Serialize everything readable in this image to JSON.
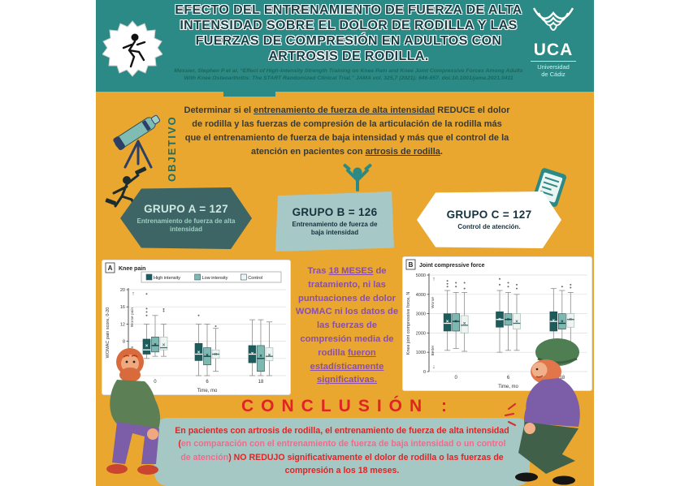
{
  "palette": {
    "header_teal": "#2b8a85",
    "body_yellow": "#e9a72f",
    "title_ink": "#173f45",
    "note_purple": "#8a4fa8",
    "conclusion_red": "#e02424",
    "conclusion_pink": "#ef6a8c",
    "conclusion_box_blue": "#a5c8c5",
    "group_a_bg": "#3e6565",
    "group_b_bg": "#a6c8c6",
    "group_c_bg": "#ffffff"
  },
  "header": {
    "title": "EFECTO DEL ENTRENAMIENTO DE FUERZA DE ALTA INTENSIDAD SOBRE EL DOLOR DE RODILLA Y LAS FUERZAS DE COMPRESIÓN EN ADULTOS CON ARTROSIS DE RODILLA.",
    "citation": "Messier, Stephen P et al. “Effect of High-Intensity Strength Training on Knee Pain and Knee Joint Compressive Forces Among Adults With Knee Osteoarthritis: The START Randomized Clinical Trial.” JAMA vol. 325,7 (2021): 646-657. doi:10.1001/jama.2021.0411",
    "uca": {
      "acronym": "UCA",
      "org_line1": "Universidad",
      "org_line2": "de Cádiz"
    }
  },
  "objective": {
    "label": "OBJETIVO",
    "segments": [
      {
        "t": "Determinar si el "
      },
      {
        "t": "entrenamiento de fuerza de alta intensidad",
        "u": true
      },
      {
        "t": " REDUCE el dolor de rodilla y las fuerzas de compresión de la articulación de la rodilla más que el entrenamiento de fuerza de baja intensidad y más que el control de la atención en pacientes con "
      },
      {
        "t": "artrosis de rodilla",
        "u": true
      },
      {
        "t": "."
      }
    ]
  },
  "groups": [
    {
      "title": "GRUPO A = 127",
      "subtitle": "Entrenamiento de fuerza de alta intensidad"
    },
    {
      "title": "GRUPO B = 126",
      "subtitle": "Entrenamiento de fuerza de baja intensidad"
    },
    {
      "title": "GRUPO C = 127",
      "subtitle": "Control de atención."
    }
  ],
  "mid_note": {
    "segments": [
      {
        "t": "Tras "
      },
      {
        "t": "18 MESES",
        "u": true
      },
      {
        "t": " de tratamiento, ni las puntuaciones de dolor WOMAC ni los datos de las fuerzas de compresión media de rodilla "
      },
      {
        "t": "fueron estadísticamente significativas.",
        "u": true
      }
    ]
  },
  "conclusion": {
    "title": "CONCLUSIÓN :",
    "segments": [
      {
        "t": "En pacientes con artrosis de rodilla, el entrenamiento de fuerza de alta intensidad (",
        "color": "#e02424"
      },
      {
        "t": "en comparación con el entrenamiento de fuerza de baja intensidad o un control de atención",
        "color": "#ef6a8c"
      },
      {
        "t": ") NO REDUJO significativamente el dolor de rodilla o las fuerzas de compresión a los 18 meses.",
        "color": "#e02424"
      }
    ]
  },
  "chart_data": [
    {
      "type": "boxplot",
      "panel_letter": "A",
      "title": "Knee pain",
      "ylabel": "WOMAC pain score, 0-20",
      "xlabel": "Time, mo",
      "ylim": [
        0,
        20
      ],
      "yticks": [
        0,
        4,
        8,
        12,
        16,
        20
      ],
      "categories": [
        "0",
        "6",
        "18"
      ],
      "legend": true,
      "axis_annotations": {
        "top": "Worse pain",
        "bottom": "Less pain"
      },
      "grid": true,
      "series": [
        {
          "name": "High intensity",
          "color": "#1e5c5c",
          "boxes": [
            {
              "lo": 4,
              "q1": 5,
              "med": 6,
              "q3": 8.5,
              "hi": 12,
              "mean": 7,
              "outliers": [
                14,
                14.8,
                15.6,
                19
              ]
            },
            {
              "lo": 0,
              "q1": 3.5,
              "med": 5,
              "q3": 7.5,
              "hi": 12,
              "mean": 5.5,
              "outliers": [
                14
              ]
            },
            {
              "lo": 0,
              "q1": 3,
              "med": 5,
              "q3": 7,
              "hi": 13,
              "mean": 5.2,
              "outliers": []
            }
          ]
        },
        {
          "name": "Low intensity",
          "color": "#7db8b2",
          "boxes": [
            {
              "lo": 4.5,
              "q1": 5.5,
              "med": 7,
              "q3": 9,
              "hi": 14,
              "mean": 7.3,
              "outliers": []
            },
            {
              "lo": 0,
              "q1": 2.5,
              "med": 4.5,
              "q3": 6.5,
              "hi": 12,
              "mean": 4.8,
              "outliers": []
            },
            {
              "lo": 0,
              "q1": 1,
              "med": 4,
              "q3": 7,
              "hi": 13,
              "mean": 4.6,
              "outliers": []
            }
          ]
        },
        {
          "name": "Control",
          "color": "#eef4f2",
          "boxes": [
            {
              "lo": 4.5,
              "q1": 6,
              "med": 6.5,
              "q3": 9,
              "hi": 12,
              "mean": 7.2,
              "outliers": [
                15,
                15.5
              ]
            },
            {
              "lo": 1,
              "q1": 4,
              "med": 5,
              "q3": 6,
              "hi": 11,
              "mean": 5,
              "outliers": [
                11.5
              ]
            },
            {
              "lo": 0,
              "q1": 3.5,
              "med": 4.5,
              "q3": 6.5,
              "hi": 12.5,
              "mean": 4.8,
              "outliers": []
            }
          ]
        }
      ]
    },
    {
      "type": "boxplot",
      "panel_letter": "B",
      "title": "Joint compressive force",
      "ylabel": "Knee joint compressive force, N",
      "xlabel": "Time, mo",
      "ylim": [
        0,
        5000
      ],
      "yticks": [
        0,
        1000,
        2000,
        3000,
        4000,
        5000
      ],
      "categories": [
        "0",
        "6",
        "18"
      ],
      "legend": false,
      "axis_annotations": {
        "top": "Worse",
        "bottom": "Better"
      },
      "grid": true,
      "series": [
        {
          "name": "High intensity",
          "color": "#1e5c5c",
          "boxes": [
            {
              "lo": 1100,
              "q1": 2100,
              "med": 2500,
              "q3": 3000,
              "hi": 4200,
              "mean": 2600,
              "outliers": [
                4400,
                4550,
                4700
              ]
            },
            {
              "lo": 1000,
              "q1": 2300,
              "med": 2700,
              "q3": 3100,
              "hi": 4200,
              "mean": 2700,
              "outliers": [
                4500,
                4800
              ]
            },
            {
              "lo": 1000,
              "q1": 2100,
              "med": 2600,
              "q3": 3100,
              "hi": 4300,
              "mean": 2650,
              "outliers": []
            }
          ]
        },
        {
          "name": "Low intensity",
          "color": "#7db8b2",
          "boxes": [
            {
              "lo": 1200,
              "q1": 2100,
              "med": 2600,
              "q3": 3000,
              "hi": 4100,
              "mean": 2600,
              "outliers": [
                4400,
                4600
              ]
            },
            {
              "lo": 1100,
              "q1": 2400,
              "med": 2700,
              "q3": 3000,
              "hi": 4100,
              "mean": 2700,
              "outliers": [
                4400,
                4600
              ]
            },
            {
              "lo": 1000,
              "q1": 2200,
              "med": 2500,
              "q3": 3000,
              "hi": 4200,
              "mean": 2600,
              "outliers": [
                4400
              ]
            }
          ]
        },
        {
          "name": "Control",
          "color": "#eef4f2",
          "boxes": [
            {
              "lo": 1050,
              "q1": 2000,
              "med": 2400,
              "q3": 2900,
              "hi": 4100,
              "mean": 2500,
              "outliers": [
                4300,
                4600
              ]
            },
            {
              "lo": 1100,
              "q1": 2200,
              "med": 2500,
              "q3": 3000,
              "hi": 4000,
              "mean": 2600,
              "outliers": [
                4300,
                4500
              ]
            },
            {
              "lo": 1000,
              "q1": 2300,
              "med": 2700,
              "q3": 3000,
              "hi": 4100,
              "mean": 2700,
              "outliers": [
                4350,
                4500
              ]
            }
          ]
        }
      ]
    }
  ]
}
